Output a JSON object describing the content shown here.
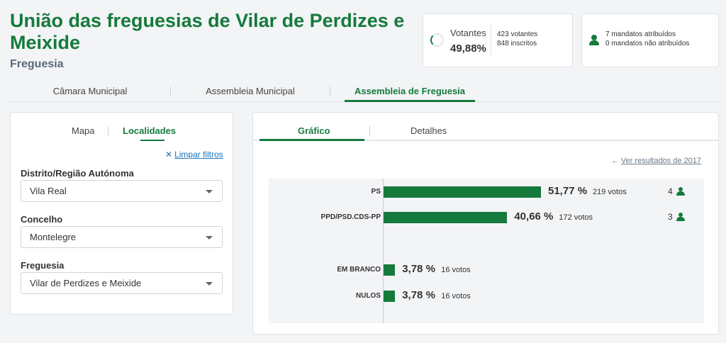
{
  "header": {
    "title": "União das freguesias de Vilar de Perdizes e Meixide",
    "subtitle": "Freguesia"
  },
  "voters": {
    "label": "Votantes",
    "percent": "49,88%",
    "progress": 0.4988,
    "voters_count": "423 votantes",
    "registered_count": "848 inscritos"
  },
  "mandates": {
    "assigned": "7 mandatos atribuídos",
    "unassigned": "0 mandatos não atribuídos"
  },
  "top_tabs": [
    {
      "label": "Câmara Municipal"
    },
    {
      "label": "Assembleia Municipal"
    },
    {
      "label": "Assembleia de Freguesia",
      "active": true
    }
  ],
  "filters": {
    "tabs": [
      {
        "label": "Mapa"
      },
      {
        "label": "Localidades",
        "active": true
      }
    ],
    "clear_label": "Limpar filtros",
    "fields": [
      {
        "label": "Distrito/Região Autónoma",
        "value": "Vila Real"
      },
      {
        "label": "Concelho",
        "value": "Montelegre"
      },
      {
        "label": "Freguesia",
        "value": "Vilar de Perdizes e Meixide"
      }
    ]
  },
  "results": {
    "tabs": [
      {
        "label": "Gráfico",
        "active": true
      },
      {
        "label": "Detalhes"
      }
    ],
    "previous_link": "Ver resultados de 2017"
  },
  "chart_data": {
    "type": "bar",
    "orientation": "horizontal",
    "categories": [
      "PS",
      "PPD/PSD.CDS-PP",
      "EM BRANCO",
      "NULOS"
    ],
    "values": [
      51.77,
      40.66,
      3.78,
      3.78
    ],
    "value_labels": [
      "51,77 %",
      "40,66 %",
      "3,78 %",
      "3,78 %"
    ],
    "votes": [
      "219 votos",
      "172 votos",
      "16 votos",
      "16 votos"
    ],
    "seats": [
      "4",
      "3",
      "",
      ""
    ],
    "bar_color": "#157a3c"
  },
  "colors": {
    "accent": "#157a3c",
    "link": "#1b75bb",
    "background": "#f2f4f6"
  }
}
